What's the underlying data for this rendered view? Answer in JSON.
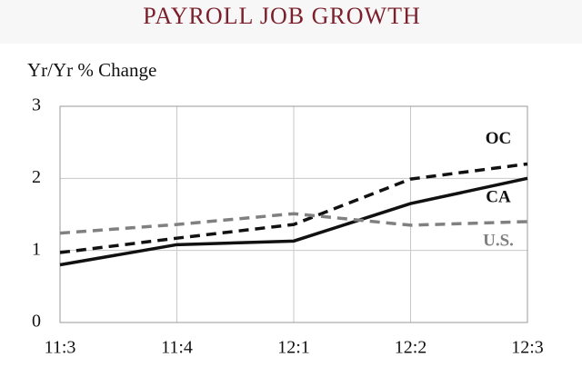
{
  "chart_data": {
    "type": "line",
    "title": "PAYROLL JOB GROWTH",
    "y_label": "Yr/Yr % Change",
    "categories": [
      "11:3",
      "11:4",
      "12:1",
      "12:2",
      "12:3"
    ],
    "series": [
      {
        "name": "OC",
        "color": "#111111",
        "dash": true,
        "values": [
          0.97,
          1.17,
          1.36,
          1.99,
          2.2
        ]
      },
      {
        "name": "CA",
        "color": "#111111",
        "dash": false,
        "values": [
          0.8,
          1.08,
          1.13,
          1.65,
          2.0
        ]
      },
      {
        "name": "U.S.",
        "color": "#808080",
        "dash": true,
        "values": [
          1.24,
          1.36,
          1.51,
          1.35,
          1.4
        ]
      }
    ],
    "ylim": [
      0,
      3
    ],
    "yticks": [
      0,
      1,
      2,
      3
    ],
    "grid": true
  }
}
